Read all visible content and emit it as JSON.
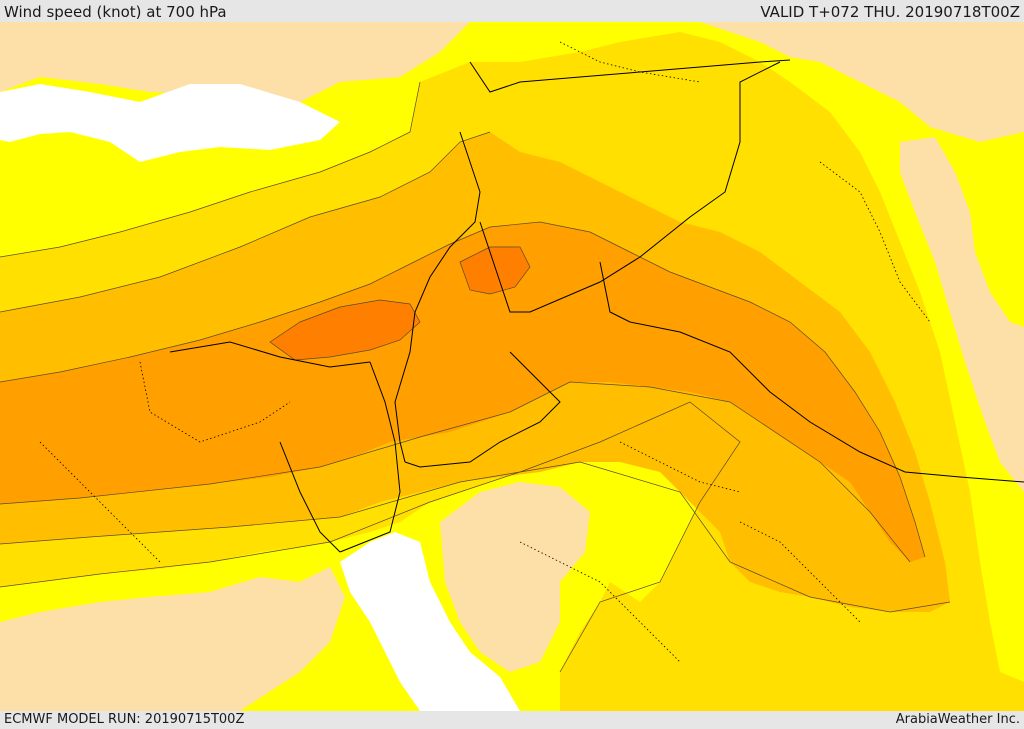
{
  "header": {
    "title": "Wind speed (knot) at 700 hPa",
    "valid": "VALID T+072 THU. 20190718T00Z"
  },
  "footer": {
    "model_run": "ECMWF MODEL RUN: 20190715T00Z",
    "credit": "ArabiaWeather Inc."
  },
  "map": {
    "fill_colors": {
      "calm": "#ffffff",
      "very_light": "#fde0a8",
      "light": "#ffff00",
      "moderate_low": "#ffe000",
      "moderate": "#ffbf00",
      "strong": "#ff9f00",
      "very_strong": "#ff8000"
    },
    "line_colors": {
      "contour": "#5a4a2a",
      "border": "#000000"
    }
  }
}
